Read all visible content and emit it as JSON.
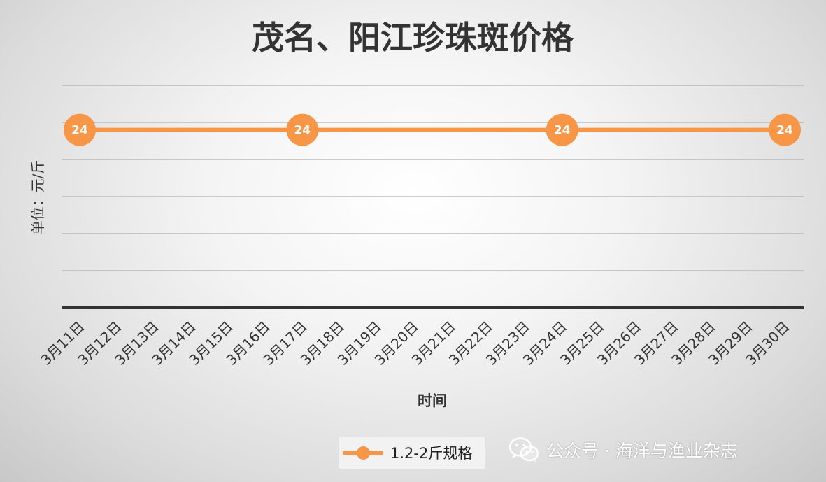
{
  "chart_data": {
    "type": "line",
    "title": "茂名、阳江珍珠斑价格",
    "ylabel": "单位：元/斤",
    "xlabel": "时间",
    "categories": [
      "3月11日",
      "3月12日",
      "3月13日",
      "3月14日",
      "3月15日",
      "3月16日",
      "3月17日",
      "3月18日",
      "3月19日",
      "3月20日",
      "3月21日",
      "3月22日",
      "3月23日",
      "3月24日",
      "3月25日",
      "3月26日",
      "3月27日",
      "3月28日",
      "3月29日",
      "3月30日"
    ],
    "series": [
      {
        "name": "1.2-2斤规格",
        "points": [
          {
            "x": "3月11日",
            "y": 24
          },
          {
            "x": "3月17日",
            "y": 24
          },
          {
            "x": "3月24日",
            "y": 24
          },
          {
            "x": "3月30日",
            "y": 24
          }
        ],
        "color": "#f79646"
      }
    ],
    "ylim": [
      0,
      30
    ],
    "grid": true,
    "legend": "bottom"
  },
  "watermark": {
    "icon": "wechat-icon",
    "text": "公众号 · 海洋与渔业杂志"
  }
}
